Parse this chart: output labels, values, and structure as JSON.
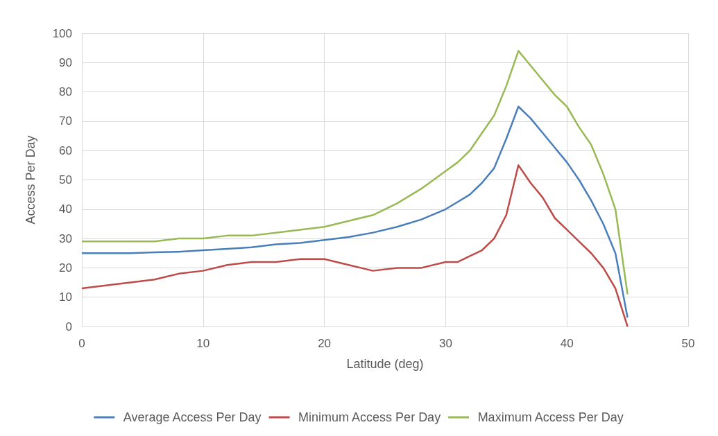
{
  "chart_data": {
    "type": "line",
    "xlabel": "Latitude (deg)",
    "ylabel": "Access Per Day",
    "x": [
      0,
      2,
      4,
      6,
      8,
      10,
      12,
      14,
      16,
      18,
      20,
      22,
      24,
      26,
      28,
      30,
      31,
      32,
      33,
      34,
      35,
      36,
      37,
      38,
      39,
      40,
      41,
      42,
      43,
      44,
      45
    ],
    "series": [
      {
        "name": "Average Access Per Day",
        "color": "#4a7ebb",
        "values": [
          25,
          25,
          25,
          25.3,
          25.5,
          26,
          26.5,
          27,
          28,
          28.5,
          29.5,
          30.5,
          32,
          34,
          36.5,
          40,
          42.5,
          45,
          49,
          54,
          64,
          75,
          71,
          66,
          61,
          56,
          50,
          43,
          35,
          25,
          3
        ]
      },
      {
        "name": "Minimum Access Per Day",
        "color": "#be4b48",
        "values": [
          13,
          14,
          15,
          16,
          18,
          19,
          21,
          22,
          22,
          23,
          23,
          21,
          19,
          20,
          20,
          22,
          22,
          24,
          26,
          30,
          38,
          55,
          49,
          44,
          37,
          33,
          29,
          25,
          20,
          13,
          0
        ]
      },
      {
        "name": "Maximum Access Per Day",
        "color": "#98b954",
        "values": [
          29,
          29,
          29,
          29,
          30,
          30,
          31,
          31,
          32,
          33,
          34,
          36,
          38,
          42,
          47,
          53,
          56,
          60,
          66,
          72,
          82,
          94,
          89,
          84,
          79,
          75,
          68,
          62,
          52,
          40,
          11
        ]
      }
    ],
    "xlim": [
      0,
      50
    ],
    "xticks": [
      0,
      10,
      20,
      30,
      40,
      50
    ],
    "ylim": [
      0,
      100
    ],
    "yticks": [
      0,
      10,
      20,
      30,
      40,
      50,
      60,
      70,
      80,
      90,
      100
    ],
    "grid": true,
    "legend": "bottom",
    "marker": "none",
    "line_style": "solid"
  }
}
